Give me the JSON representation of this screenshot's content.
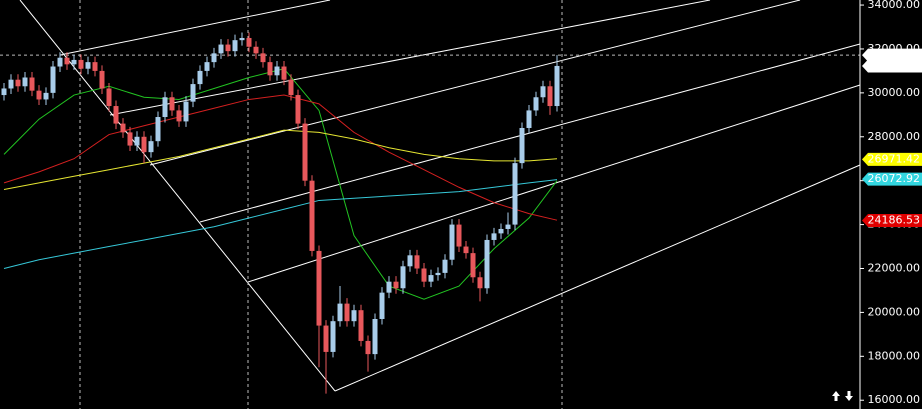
{
  "chart_data": {
    "type": "candlestick",
    "ylim": [
      15600,
      34230
    ],
    "yticks": [
      {
        "value": 16000,
        "label": "16000.00"
      },
      {
        "value": 18000,
        "label": "18000.00"
      },
      {
        "value": 20000,
        "label": "20000.00"
      },
      {
        "value": 22000,
        "label": "22000.00"
      },
      {
        "value": 24000,
        "label": "24000.00"
      },
      {
        "value": 26000,
        "label": "26000.00"
      },
      {
        "value": 28000,
        "label": "28000.00"
      },
      {
        "value": 30000,
        "label": "30000.00"
      },
      {
        "value": 32000,
        "label": "32000.00"
      },
      {
        "value": 34000,
        "label": "34000.00"
      }
    ],
    "up_color": "#a9cdea",
    "down_color": "#e8585c",
    "open": [
      29900,
      30200,
      30600,
      30300,
      30700,
      30100,
      29700,
      30000,
      31200,
      31600,
      31300,
      31500,
      31100,
      31400,
      31000,
      30200,
      29400,
      28600,
      28200,
      27600,
      28000,
      27300,
      27800,
      28900,
      29800,
      29200,
      28700,
      29600,
      30400,
      31000,
      31400,
      31800,
      32200,
      31900,
      32400,
      32500,
      32100,
      31800,
      31400,
      30800,
      31200,
      30600,
      29900,
      28600,
      26000,
      22800,
      19400,
      18200,
      19600,
      20400,
      19600,
      20100,
      18700,
      18100,
      19700,
      20900,
      21400,
      21100,
      22100,
      22600,
      22000,
      21400,
      21700,
      21800,
      22400,
      24000,
      23000,
      22700,
      21600,
      21100,
      23300,
      23600,
      23800,
      24000,
      26800,
      28400,
      29200,
      29800,
      30300,
      29400
    ],
    "high": [
      30450,
      30850,
      30850,
      30950,
      30950,
      30350,
      30250,
      31450,
      31850,
      31850,
      31750,
      31750,
      31650,
      31650,
      31250,
      30450,
      29650,
      28850,
      28450,
      28250,
      28250,
      28050,
      29150,
      30050,
      30050,
      29450,
      29850,
      30650,
      31250,
      31650,
      32050,
      32450,
      32450,
      32650,
      32750,
      32750,
      32350,
      32050,
      31650,
      31450,
      31450,
      30850,
      30150,
      28850,
      26250,
      23050,
      19650,
      19850,
      21200,
      20650,
      20350,
      20350,
      18950,
      19950,
      21150,
      21650,
      21650,
      22350,
      22850,
      22850,
      22250,
      21950,
      22050,
      22650,
      24250,
      24250,
      23250,
      22950,
      21850,
      23550,
      23850,
      24050,
      24550,
      27050,
      28650,
      29450,
      30050,
      30550,
      30550,
      31719.25
    ],
    "low": [
      29650,
      29950,
      30050,
      30050,
      29850,
      29450,
      29450,
      29750,
      30950,
      31050,
      31050,
      30850,
      30850,
      30750,
      29950,
      29150,
      28350,
      27950,
      27350,
      27350,
      26800,
      27050,
      27550,
      28650,
      28950,
      28450,
      28450,
      29350,
      30150,
      30750,
      31150,
      31550,
      31650,
      31650,
      32150,
      31850,
      31550,
      31150,
      30550,
      30550,
      30350,
      29650,
      28350,
      25750,
      22550,
      17500,
      16300,
      17950,
      19350,
      19350,
      19350,
      18450,
      17300,
      17850,
      19450,
      20650,
      20850,
      20850,
      21850,
      21750,
      21150,
      21150,
      21450,
      21550,
      22150,
      22750,
      22450,
      21350,
      20500,
      20850,
      23050,
      23350,
      23550,
      23750,
      26550,
      28150,
      28950,
      29550,
      29000,
      29150
    ],
    "close": [
      30200,
      30600,
      30300,
      30700,
      30100,
      29700,
      30000,
      31200,
      31600,
      31300,
      31500,
      31100,
      31400,
      31000,
      30200,
      29400,
      28600,
      28200,
      27600,
      28000,
      27300,
      27800,
      28900,
      29800,
      29200,
      28700,
      29600,
      30400,
      31000,
      31400,
      31800,
      32200,
      31900,
      32400,
      32500,
      32100,
      31800,
      31400,
      30800,
      31200,
      30600,
      29900,
      28600,
      26000,
      22800,
      19400,
      18200,
      19600,
      20400,
      19600,
      20100,
      18700,
      18100,
      19700,
      20900,
      21400,
      21100,
      22100,
      22600,
      22000,
      21400,
      21700,
      21800,
      22400,
      24000,
      23000,
      22700,
      21600,
      21100,
      23300,
      23600,
      23800,
      24000,
      26800,
      28400,
      29200,
      29800,
      30300,
      29400,
      31225.85
    ],
    "indicators": [
      {
        "color": "#22c422",
        "x": [
          0,
          5,
          10,
          15,
          20,
          25,
          30,
          35,
          40,
          45,
          50,
          55,
          60,
          65,
          70,
          75,
          79
        ],
        "values": [
          27200,
          28800,
          29900,
          30300,
          29800,
          29700,
          30200,
          30700,
          31100,
          29200,
          23500,
          21200,
          20600,
          21200,
          22900,
          24300,
          26000
        ]
      },
      {
        "color": "#d42020",
        "x": [
          0,
          5,
          10,
          15,
          20,
          25,
          30,
          35,
          40,
          45,
          50,
          55,
          60,
          65,
          70,
          75,
          79
        ],
        "values": [
          25900,
          26400,
          27000,
          28100,
          28500,
          28900,
          29300,
          29700,
          29900,
          29500,
          28200,
          27300,
          26500,
          25700,
          25000,
          24500,
          24200
        ]
      },
      {
        "color": "#e6e632",
        "x": [
          0,
          5,
          10,
          15,
          20,
          25,
          30,
          35,
          40,
          45,
          50,
          55,
          60,
          65,
          70,
          75,
          79
        ],
        "values": [
          25600,
          25900,
          26200,
          26500,
          26800,
          27100,
          27500,
          27900,
          28300,
          28200,
          27900,
          27500,
          27200,
          27000,
          26900,
          26900,
          27000
        ]
      },
      {
        "color": "#36c8d8",
        "x": [
          0,
          5,
          10,
          15,
          20,
          25,
          30,
          35,
          40,
          45,
          50,
          55,
          60,
          65,
          70,
          75,
          79
        ],
        "values": [
          22000,
          22400,
          22700,
          23000,
          23300,
          23600,
          23900,
          24300,
          24700,
          25100,
          25200,
          25300,
          25400,
          25500,
          25700,
          25900,
          26050
        ]
      }
    ],
    "price_labels": [
      {
        "value": 31719.25,
        "color": "#ffffff",
        "text_color": "#000000"
      },
      {
        "value": 31225.85,
        "color": "#ffffff",
        "text_color": "#000000"
      },
      {
        "value": 26971.42,
        "color": "#ffff00",
        "text_color": "#000000"
      },
      {
        "value": 26072.92,
        "color": "#33d6e0",
        "text_color": "#000000"
      },
      {
        "value": 24186.53,
        "color": "#e00000",
        "text_color": "#000000"
      }
    ],
    "dashed_level": 31719.25
  }
}
